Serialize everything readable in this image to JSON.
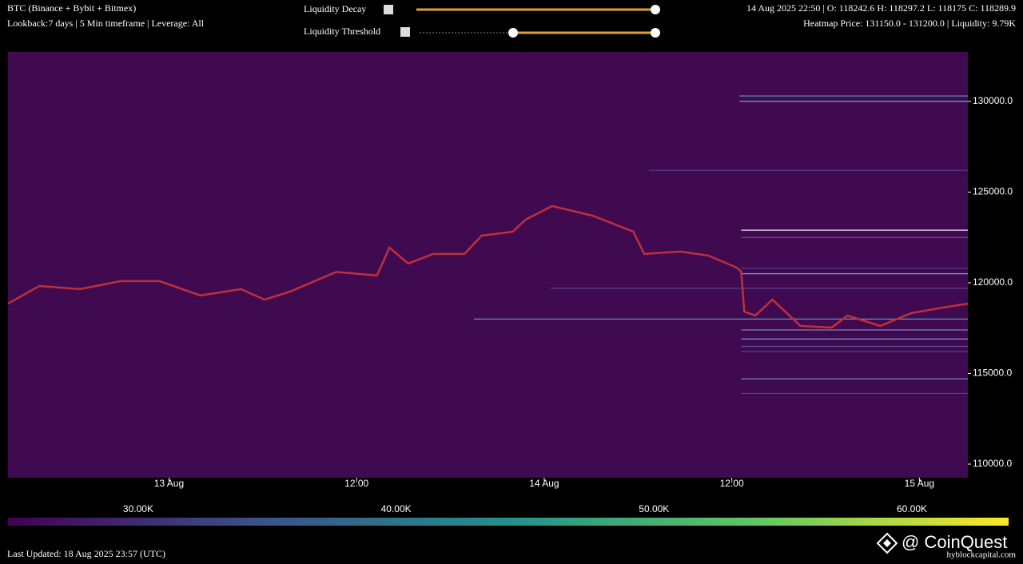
{
  "header": {
    "symbol": "BTC (Binance + Bybit + Bitmex)",
    "settings": "Lookback:7 days | 5 Min timeframe | Leverage: All",
    "ohlc": "14 Aug 2025 22:50 | O: 118242.6 H: 118297.2 L: 118175 C: 118289.9",
    "heatmap_info": "Heatmap Price: 131150.0 - 131200.0 | Liquidity: 9.79K"
  },
  "controls": [
    {
      "label": "Liquidity Decay"
    },
    {
      "label": "Liquidity Threshold"
    }
  ],
  "footer": {
    "updated": "Last Updated: 18 Aug 2025 23:57 (UTC)"
  },
  "brand": {
    "name": "@ CoinQuest",
    "site": "hyblockcapital.com"
  },
  "chart_data": {
    "type": "line",
    "xlim": [
      -10.3,
      51.1
    ],
    "xticks": [
      {
        "value": 0,
        "label": "13 Aug"
      },
      {
        "value": 12,
        "label": "12:00"
      },
      {
        "value": 24,
        "label": "14 Aug"
      },
      {
        "value": 36,
        "label": "12:00"
      },
      {
        "value": 48,
        "label": "15 Aug"
      }
    ],
    "ylim": [
      109250,
      132730
    ],
    "yticks": [
      {
        "value": 110000,
        "label": "110000.0"
      },
      {
        "value": 115000,
        "label": "115000.0"
      },
      {
        "value": 120000,
        "label": "120000.0"
      },
      {
        "value": 125000,
        "label": "125000.0"
      },
      {
        "value": 130000,
        "label": "130000.0"
      }
    ],
    "series": [
      {
        "color": "#c0303a",
        "x": [
          -10.3,
          -8.3,
          -5.7,
          -3.1,
          -0.6,
          2.0,
          4.6,
          6.1,
          7.7,
          10.7,
          13.3,
          14.1,
          15.3,
          16.9,
          18.9,
          20.0,
          22.0,
          22.8,
          24.5,
          27.1,
          29.7,
          30.4,
          32.7,
          34.5,
          36.3,
          36.6,
          36.8,
          37.5,
          38.6,
          40.4,
          42.4,
          43.4,
          45.5,
          47.5,
          49.5,
          51.1
        ],
        "values": [
          118850,
          119820,
          119650,
          120090,
          120090,
          119300,
          119650,
          119070,
          119500,
          120600,
          120400,
          121940,
          121060,
          121590,
          121590,
          122600,
          122820,
          123480,
          124230,
          123700,
          122820,
          121590,
          121720,
          121500,
          120840,
          120620,
          118410,
          118190,
          119070,
          117620,
          117530,
          118190,
          117620,
          118330,
          118630,
          118850
        ]
      }
    ],
    "levels": {
      "prices": [
        130300,
        130000,
        126200,
        122900,
        122500,
        120800,
        120500,
        119700,
        118000,
        117400,
        116900,
        116500,
        116200,
        114700,
        113900
      ],
      "starts": [
        36.5,
        36.5,
        30.7,
        36.6,
        36.6,
        36.6,
        36.6,
        24.4,
        19.5,
        36.6,
        36.6,
        36.6,
        36.6,
        36.6,
        36.6
      ],
      "colors": [
        "#5fa0c8",
        "#7fb8d8",
        "#5a3a9a",
        "#ffffff",
        "#6a5aa8",
        "#5a4aa0",
        "#7ab0d8",
        "#5a4aa0",
        "#6aa0d0",
        "#8090c8",
        "#80b0d8",
        "#6a5aa8",
        "#5a4aa0",
        "#7090c8",
        "#5a4aa0"
      ]
    },
    "clim": [
      24950,
      63750
    ],
    "cticks": [
      {
        "value": 30000,
        "label": "30.00K"
      },
      {
        "value": 40000,
        "label": "40.00K"
      },
      {
        "value": 50000,
        "label": "50.00K"
      },
      {
        "value": 60000,
        "label": "60.00K"
      }
    ],
    "colormap": [
      "#440154",
      "#3b528b",
      "#21918c",
      "#5ec962",
      "#fde725"
    ]
  }
}
